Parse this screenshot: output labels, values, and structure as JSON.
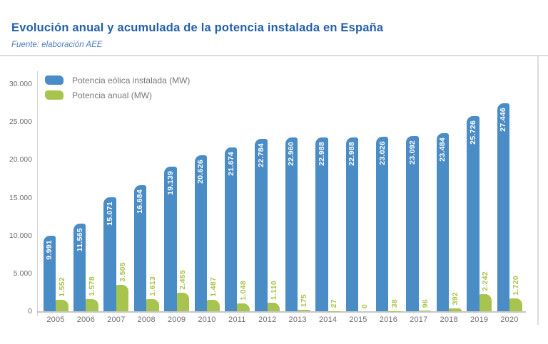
{
  "header": {
    "title": "Evolución anual y acumulada de la potencia instalada en España",
    "source": "Fuente: elaboración AEE"
  },
  "colors": {
    "accent_blue": "#4a8cc5",
    "accent_green": "#a7c44e",
    "title_blue": "#2460a9",
    "subtitle_blue": "#4c7dbf",
    "axis_text_gray": "#6d6e71",
    "legend_text_gray": "#76777a"
  },
  "legend": {
    "items": [
      {
        "label": "Potencia eólica instalada (MW)",
        "color": "#4a8cc5"
      },
      {
        "label": "Potencia anual (MW)",
        "color": "#a7c44e"
      }
    ]
  },
  "chart_data": {
    "type": "bar",
    "title": "Evolución anual y acumulada de la potencia instalada en España",
    "xlabel": "",
    "ylabel": "",
    "categories": [
      "2005",
      "2006",
      "2007",
      "2008",
      "2009",
      "2010",
      "2011",
      "2012",
      "2013",
      "2014",
      "2015",
      "2016",
      "2017",
      "2018",
      "2019",
      "2020"
    ],
    "series": [
      {
        "name": "Potencia eólica instalada (MW)",
        "color": "#4a8cc5",
        "values": [
          9991,
          11565,
          15071,
          16684,
          19139,
          20626,
          21674,
          22784,
          22960,
          22988,
          22988,
          23026,
          23092,
          23484,
          25726,
          27446
        ],
        "labels": [
          "9.991",
          "11.565",
          "15.071",
          "16.684",
          "19.139",
          "20.626",
          "21.674",
          "22.784",
          "22.960",
          "22.988",
          "22.988",
          "23.026",
          "23.092",
          "23.484",
          "25.726",
          "27.446"
        ]
      },
      {
        "name": "Potencia anual (MW)",
        "color": "#a7c44e",
        "values": [
          1552,
          1578,
          3505,
          1613,
          2455,
          1487,
          1048,
          1110,
          175,
          27,
          0,
          38,
          96,
          392,
          2242,
          1720
        ],
        "labels": [
          "1.552",
          "1.578",
          "3.505",
          "1.613",
          "2.455",
          "1.487",
          "1.048",
          "1.110",
          "175",
          "27",
          "0",
          "38",
          "96",
          "392",
          "2.242",
          "1.720"
        ]
      }
    ],
    "ylim": [
      0,
      30000
    ],
    "y_ticks": [
      "0",
      "5.000",
      "10.000",
      "15.000",
      "20.000",
      "25.000",
      "30.000"
    ],
    "y_tick_values": [
      0,
      5000,
      10000,
      15000,
      20000,
      25000,
      30000
    ],
    "grid": false,
    "legend_position": "top-left"
  }
}
